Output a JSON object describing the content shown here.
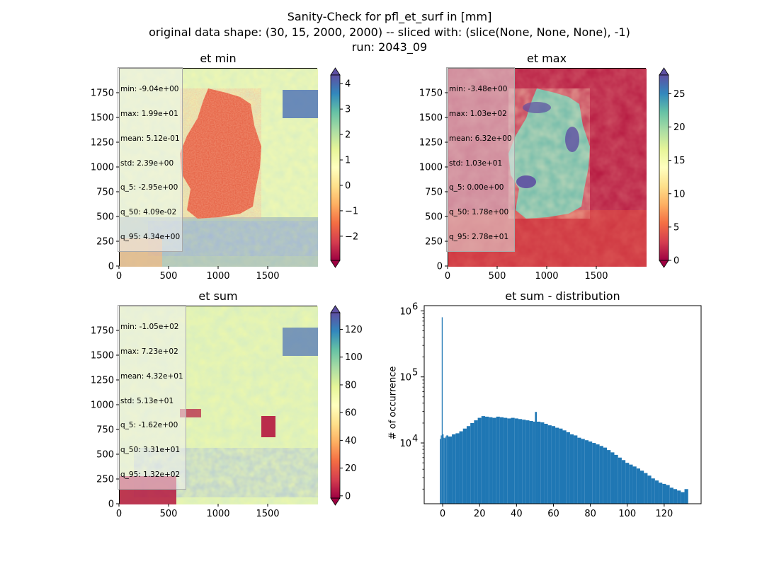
{
  "suptitle": {
    "line1": "Sanity-Check for pfl_et_surf in [mm]",
    "line2": "original data shape: (30, 15, 2000, 2000) -- sliced with: (slice(None, None, None), -1)",
    "line3": "run: 2043_09"
  },
  "panels": {
    "et_min": {
      "title": "et min",
      "stats": [
        "min: -9.04e+00",
        "max: 1.99e+01",
        "mean: 5.12e-01",
        "std: 2.39e+00",
        "q_5: -2.95e+00",
        "q_50: 4.09e-02",
        "q_95: 4.34e+00"
      ],
      "colorbar_ticks": [
        -2,
        -1,
        0,
        1,
        2,
        3,
        4
      ],
      "colorbar_labels": [
        "−2",
        "−1",
        "0",
        "1",
        "2",
        "3",
        "4"
      ],
      "vmin": -2.95,
      "vmax": 4.34
    },
    "et_max": {
      "title": "et max",
      "stats": [
        "min: -3.48e+00",
        "max: 1.03e+02",
        "mean: 6.32e+00",
        "std: 1.03e+01",
        "q_5: 0.00e+00",
        "q_50: 1.78e+00",
        "q_95: 2.78e+01"
      ],
      "colorbar_ticks": [
        0,
        5,
        10,
        15,
        20,
        25
      ],
      "colorbar_labels": [
        "0",
        "5",
        "10",
        "15",
        "20",
        "25"
      ],
      "vmin": 0,
      "vmax": 27.8
    },
    "et_sum": {
      "title": "et sum",
      "stats": [
        "min: -1.05e+02",
        "max: 7.23e+02",
        "mean: 4.32e+01",
        "std: 5.13e+01",
        "q_5: -1.62e+00",
        "q_50: 3.31e+01",
        "q_95: 1.32e+02"
      ],
      "colorbar_ticks": [
        0,
        20,
        40,
        60,
        80,
        100,
        120
      ],
      "colorbar_labels": [
        "0",
        "20",
        "40",
        "60",
        "80",
        "100",
        "120"
      ],
      "vmin": -1.62,
      "vmax": 132
    },
    "hist": {
      "title": "et sum - distribution",
      "ylabel": "# of occurrence",
      "xticks": [
        0,
        20,
        40,
        60,
        80,
        100,
        120
      ],
      "xtick_labels": [
        "0",
        "20",
        "40",
        "60",
        "80",
        "100",
        "120"
      ],
      "ytick_labels": {
        "e4": "4",
        "e5": "5",
        "e6": "6"
      },
      "ytick_base": "10"
    }
  },
  "map_axis": {
    "xticks": [
      0,
      500,
      1000,
      1500
    ],
    "xtick_labels": [
      "0",
      "500",
      "1000",
      "1500"
    ],
    "yticks": [
      0,
      250,
      500,
      750,
      1000,
      1250,
      1500,
      1750
    ],
    "ytick_labels": [
      "0",
      "250",
      "500",
      "750",
      "1000",
      "1250",
      "1500",
      "1750"
    ],
    "xlim": [
      0,
      2000
    ],
    "ylim": [
      0,
      2000
    ]
  },
  "chart_data": [
    {
      "type": "heatmap",
      "title": "et min",
      "xlim": [
        0,
        2000
      ],
      "ylim": [
        0,
        2000
      ],
      "colormap": "Spectral",
      "colorbar_range": [
        -2.95,
        4.34
      ]
    },
    {
      "type": "heatmap",
      "title": "et max",
      "xlim": [
        0,
        2000
      ],
      "ylim": [
        0,
        2000
      ],
      "colormap": "Spectral",
      "colorbar_range": [
        0,
        27.8
      ]
    },
    {
      "type": "heatmap",
      "title": "et sum",
      "xlim": [
        0,
        2000
      ],
      "ylim": [
        0,
        2000
      ],
      "colormap": "Spectral",
      "colorbar_range": [
        -1.62,
        132
      ]
    },
    {
      "type": "bar",
      "title": "et sum - distribution",
      "ylabel": "# of occurrence",
      "yscale": "log",
      "xlim": [
        -10,
        140
      ],
      "ylim": [
        1200,
        1200000
      ],
      "color": "#1f77b4",
      "bin_x": [
        -1.5,
        -1.0,
        -0.5,
        0.0,
        0.5,
        1.0,
        1.5,
        2.0,
        3,
        5,
        7,
        9,
        11,
        13,
        15,
        17,
        19,
        21,
        23,
        25,
        27,
        29,
        31,
        33,
        35,
        37,
        39,
        41,
        43,
        45,
        47,
        49,
        50,
        51,
        53,
        55,
        57,
        59,
        61,
        63,
        65,
        67,
        69,
        71,
        73,
        75,
        77,
        79,
        81,
        83,
        85,
        87,
        89,
        91,
        93,
        95,
        97,
        99,
        101,
        103,
        105,
        107,
        109,
        111,
        113,
        115,
        117,
        119,
        121,
        123,
        125,
        127,
        129,
        131
      ],
      "bin_counts": [
        11500,
        13000,
        800000,
        13500,
        12000,
        11800,
        12500,
        13000,
        12500,
        13500,
        14000,
        15000,
        16500,
        18000,
        20000,
        22000,
        24000,
        25500,
        25000,
        24500,
        24000,
        25000,
        24500,
        24000,
        23500,
        24000,
        23500,
        23000,
        22500,
        22000,
        21500,
        21000,
        29500,
        21000,
        20500,
        19500,
        18500,
        18000,
        17000,
        16500,
        15500,
        14500,
        13500,
        13000,
        12000,
        11500,
        11000,
        10500,
        10000,
        9500,
        9000,
        8500,
        7800,
        7200,
        6600,
        6000,
        5500,
        5000,
        4700,
        4400,
        4100,
        3800,
        3500,
        3200,
        2900,
        2700,
        2500,
        2400,
        2300,
        2100,
        2000,
        1900,
        1800,
        2000
      ]
    }
  ]
}
